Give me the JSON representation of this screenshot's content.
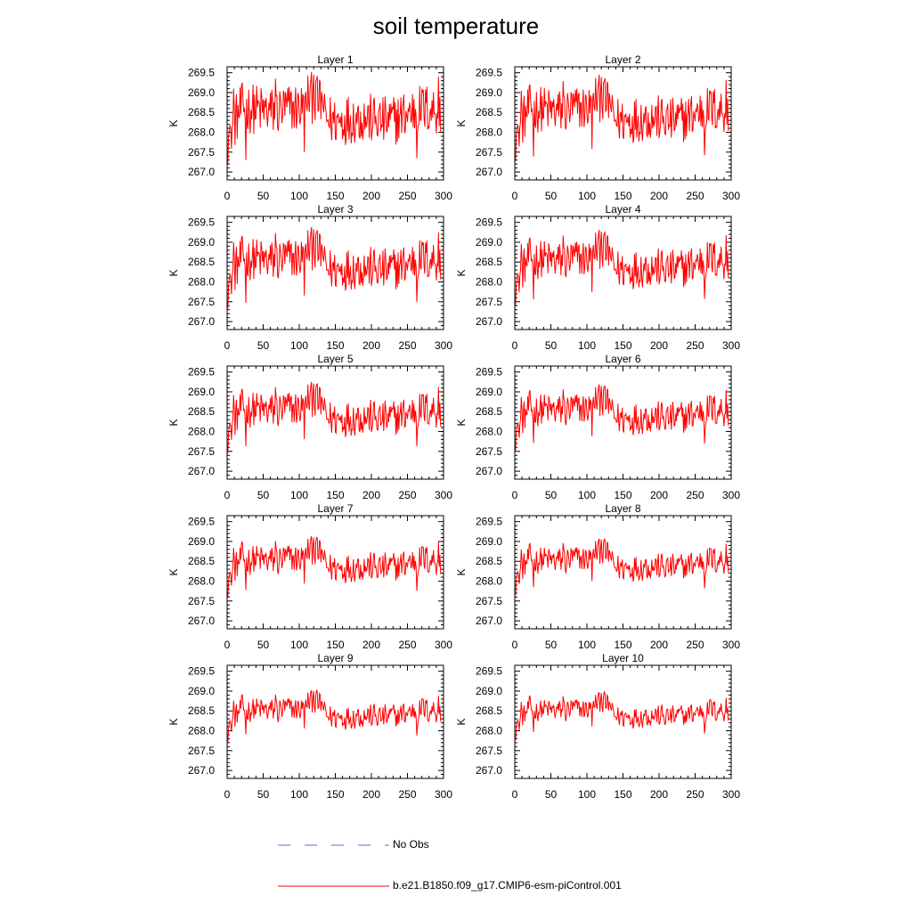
{
  "figure_title": "soil temperature",
  "legend": [
    {
      "label": "No Obs",
      "color": "#6666cc",
      "style": "dashed"
    },
    {
      "label": "b.e21.B1850.f09_g17.CMIP6-esm-piControl.001",
      "color": "#ff0000",
      "style": "solid"
    }
  ],
  "chart_data": [
    {
      "type": "line",
      "title": "Layer 1",
      "ylabel": "K",
      "xlim": [
        0,
        300
      ],
      "ylim": [
        266.8,
        269.65
      ],
      "xticks": [
        "0",
        "50",
        "100",
        "150",
        "200",
        "250",
        "300"
      ],
      "yticks": [
        "267.0",
        "267.5",
        "268.0",
        "268.5",
        "269.0",
        "269.5"
      ],
      "series": [
        {
          "color": "#ff0000",
          "x_start": 1,
          "x_step": 1,
          "values": []
        }
      ]
    },
    {
      "type": "line",
      "title": "Layer 2",
      "ylabel": "K",
      "xlim": [
        0,
        300
      ],
      "ylim": [
        266.8,
        269.65
      ],
      "xticks": [
        "0",
        "50",
        "100",
        "150",
        "200",
        "250",
        "300"
      ],
      "yticks": [
        "267.0",
        "267.5",
        "268.0",
        "268.5",
        "269.0",
        "269.5"
      ],
      "series": [
        {
          "color": "#ff0000",
          "x_start": 1,
          "x_step": 1,
          "values": []
        }
      ]
    },
    {
      "type": "line",
      "title": "Layer 3",
      "ylabel": "K",
      "xlim": [
        0,
        300
      ],
      "ylim": [
        266.8,
        269.65
      ],
      "xticks": [
        "0",
        "50",
        "100",
        "150",
        "200",
        "250",
        "300"
      ],
      "yticks": [
        "267.0",
        "267.5",
        "268.0",
        "268.5",
        "269.0",
        "269.5"
      ],
      "series": [
        {
          "color": "#ff0000",
          "x_start": 1,
          "x_step": 1,
          "values": []
        }
      ]
    },
    {
      "type": "line",
      "title": "Layer 4",
      "ylabel": "K",
      "xlim": [
        0,
        300
      ],
      "ylim": [
        266.8,
        269.65
      ],
      "xticks": [
        "0",
        "50",
        "100",
        "150",
        "200",
        "250",
        "300"
      ],
      "yticks": [
        "267.0",
        "267.5",
        "268.0",
        "268.5",
        "269.0",
        "269.5"
      ],
      "series": [
        {
          "color": "#ff0000",
          "x_start": 1,
          "x_step": 1,
          "values": []
        }
      ]
    },
    {
      "type": "line",
      "title": "Layer 5",
      "ylabel": "K",
      "xlim": [
        0,
        300
      ],
      "ylim": [
        266.8,
        269.65
      ],
      "xticks": [
        "0",
        "50",
        "100",
        "150",
        "200",
        "250",
        "300"
      ],
      "yticks": [
        "267.0",
        "267.5",
        "268.0",
        "268.5",
        "269.0",
        "269.5"
      ],
      "series": [
        {
          "color": "#ff0000",
          "x_start": 1,
          "x_step": 1,
          "values": []
        }
      ]
    },
    {
      "type": "line",
      "title": "Layer 6",
      "ylabel": "K",
      "xlim": [
        0,
        300
      ],
      "ylim": [
        266.8,
        269.65
      ],
      "xticks": [
        "0",
        "50",
        "100",
        "150",
        "200",
        "250",
        "300"
      ],
      "yticks": [
        "267.0",
        "267.5",
        "268.0",
        "268.5",
        "269.0",
        "269.5"
      ],
      "series": [
        {
          "color": "#ff0000",
          "x_start": 1,
          "x_step": 1,
          "values": []
        }
      ]
    },
    {
      "type": "line",
      "title": "Layer 7",
      "ylabel": "K",
      "xlim": [
        0,
        300
      ],
      "ylim": [
        266.8,
        269.65
      ],
      "xticks": [
        "0",
        "50",
        "100",
        "150",
        "200",
        "250",
        "300"
      ],
      "yticks": [
        "267.0",
        "267.5",
        "268.0",
        "268.5",
        "269.0",
        "269.5"
      ],
      "series": [
        {
          "color": "#ff0000",
          "x_start": 1,
          "x_step": 1,
          "values": []
        }
      ]
    },
    {
      "type": "line",
      "title": "Layer 8",
      "ylabel": "K",
      "xlim": [
        0,
        300
      ],
      "ylim": [
        266.8,
        269.65
      ],
      "xticks": [
        "0",
        "50",
        "100",
        "150",
        "200",
        "250",
        "300"
      ],
      "yticks": [
        "267.0",
        "267.5",
        "268.0",
        "268.5",
        "269.0",
        "269.5"
      ],
      "series": [
        {
          "color": "#ff0000",
          "x_start": 1,
          "x_step": 1,
          "values": []
        }
      ]
    },
    {
      "type": "line",
      "title": "Layer 9",
      "ylabel": "K",
      "xlim": [
        0,
        300
      ],
      "ylim": [
        266.8,
        269.65
      ],
      "xticks": [
        "0",
        "50",
        "100",
        "150",
        "200",
        "250",
        "300"
      ],
      "yticks": [
        "267.0",
        "267.5",
        "268.0",
        "268.5",
        "269.0",
        "269.5"
      ],
      "series": [
        {
          "color": "#ff0000",
          "x_start": 1,
          "x_step": 1,
          "values": []
        }
      ]
    },
    {
      "type": "line",
      "title": "Layer 10",
      "ylabel": "K",
      "xlim": [
        0,
        300
      ],
      "ylim": [
        266.8,
        269.65
      ],
      "xticks": [
        "0",
        "50",
        "100",
        "150",
        "200",
        "250",
        "300"
      ],
      "yticks": [
        "267.0",
        "267.5",
        "268.0",
        "268.5",
        "269.0",
        "269.5"
      ],
      "series": [
        {
          "color": "#ff0000",
          "x_start": 1,
          "x_step": 1,
          "values": []
        }
      ]
    }
  ]
}
